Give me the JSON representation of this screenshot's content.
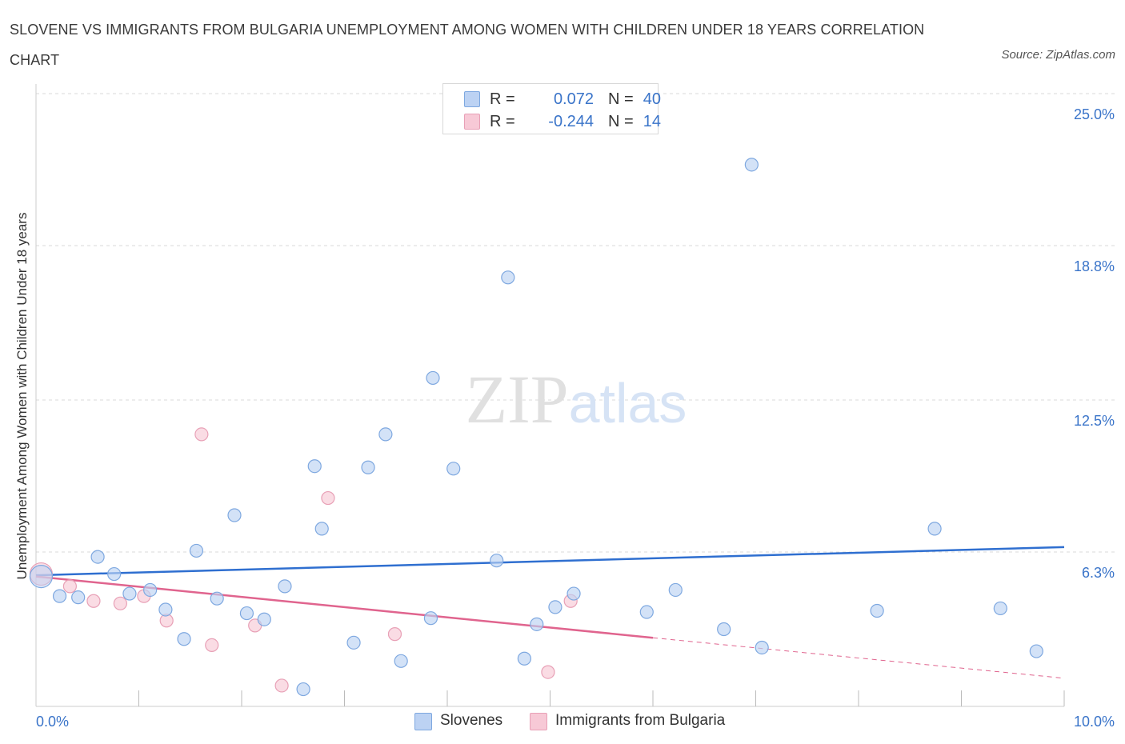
{
  "title": "SLOVENE VS IMMIGRANTS FROM BULGARIA UNEMPLOYMENT AMONG WOMEN WITH CHILDREN UNDER 18 YEARS CORRELATION CHART",
  "source": "Source: ZipAtlas.com",
  "watermark": "ZIPatlas",
  "colors": {
    "blue_fill": "#bcd2f3",
    "blue_stroke": "#7ea8e0",
    "blue_line": "#2f6fd0",
    "pink_fill": "#f7c9d6",
    "pink_stroke": "#e8a0b6",
    "pink_line": "#e0648e",
    "axis_text": "#3a74c9",
    "grid": "#d9d9d9"
  },
  "legend": {
    "rows": [
      {
        "series": "Slovenes",
        "r_label": "R =",
        "r_value": "0.072",
        "n_label": "N =",
        "n_value": "40"
      },
      {
        "series": "Immigrants from Bulgaria",
        "r_label": "R =",
        "r_value": "-0.244",
        "n_label": "N =",
        "n_value": "14"
      }
    ]
  },
  "bottom_legend": [
    "Slovenes",
    "Immigrants from Bulgaria"
  ],
  "chart_data": {
    "type": "scatter",
    "ylabel": "Unemployment Among Women with Children Under 18 years",
    "xlabel": "",
    "xlim": [
      0,
      10
    ],
    "ylim": [
      0,
      25.0
    ],
    "x_tick_labels": [
      "0.0%",
      "10.0%"
    ],
    "y_ticks": [
      6.3,
      12.5,
      18.8,
      25.0
    ],
    "y_tick_labels": [
      "6.3%",
      "12.5%",
      "18.8%",
      "25.0%"
    ],
    "grid": true,
    "series": [
      {
        "name": "Slovenes",
        "color": "blue",
        "points": [
          [
            0.05,
            5.3
          ],
          [
            0.23,
            4.5
          ],
          [
            0.41,
            4.45
          ],
          [
            0.6,
            6.1
          ],
          [
            0.76,
            5.4
          ],
          [
            0.91,
            4.6
          ],
          [
            1.11,
            4.75
          ],
          [
            1.26,
            3.95
          ],
          [
            1.44,
            2.75
          ],
          [
            1.56,
            6.35
          ],
          [
            1.76,
            4.4
          ],
          [
            1.93,
            7.8
          ],
          [
            2.05,
            3.8
          ],
          [
            2.22,
            3.55
          ],
          [
            2.42,
            4.9
          ],
          [
            2.6,
            0.7
          ],
          [
            2.71,
            9.8
          ],
          [
            2.78,
            7.25
          ],
          [
            3.09,
            2.6
          ],
          [
            3.23,
            9.75
          ],
          [
            3.4,
            11.1
          ],
          [
            3.55,
            1.85
          ],
          [
            3.84,
            3.6
          ],
          [
            3.86,
            13.4
          ],
          [
            4.06,
            9.7
          ],
          [
            4.48,
            5.95
          ],
          [
            4.59,
            17.5
          ],
          [
            4.75,
            1.95
          ],
          [
            4.87,
            3.35
          ],
          [
            5.05,
            4.05
          ],
          [
            5.23,
            4.6
          ],
          [
            5.94,
            3.85
          ],
          [
            6.22,
            4.75
          ],
          [
            6.69,
            3.15
          ],
          [
            6.96,
            22.1
          ],
          [
            7.06,
            2.4
          ],
          [
            8.18,
            3.9
          ],
          [
            8.74,
            7.25
          ],
          [
            9.38,
            4.0
          ],
          [
            9.73,
            2.25
          ]
        ]
      },
      {
        "name": "Immigrants from Bulgaria",
        "color": "pink",
        "points": [
          [
            0.05,
            5.4
          ],
          [
            0.33,
            4.9
          ],
          [
            0.56,
            4.3
          ],
          [
            0.82,
            4.2
          ],
          [
            1.05,
            4.5
          ],
          [
            1.27,
            3.5
          ],
          [
            1.61,
            11.1
          ],
          [
            1.71,
            2.5
          ],
          [
            2.13,
            3.3
          ],
          [
            2.39,
            0.85
          ],
          [
            2.84,
            8.5
          ],
          [
            3.49,
            2.95
          ],
          [
            4.98,
            1.4
          ],
          [
            5.2,
            4.3
          ]
        ]
      }
    ],
    "trendlines": [
      {
        "series": "Slovenes",
        "x": [
          0,
          10
        ],
        "y": [
          5.35,
          6.5
        ],
        "style": "solid"
      },
      {
        "series": "Immigrants from Bulgaria",
        "x_solid": [
          0,
          6.0
        ],
        "y_solid": [
          5.3,
          2.8
        ],
        "x_dashed": [
          6.0,
          10
        ],
        "y_dashed": [
          2.8,
          1.15
        ]
      }
    ]
  }
}
